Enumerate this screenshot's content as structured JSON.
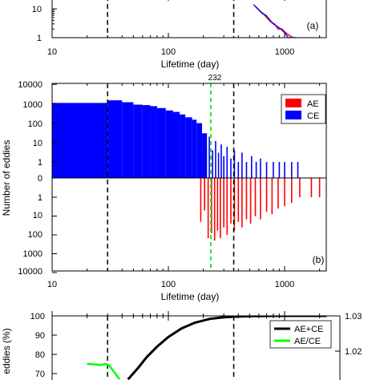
{
  "chart_data": [
    {
      "panel": "a",
      "type": "line",
      "panel_label": "(a)",
      "xlabel": "Lifetime (day)",
      "ylabel": "",
      "xscale": "log",
      "yscale": "log",
      "xlim": [
        10,
        2300
      ],
      "x_ticks": [
        "10",
        "100",
        "1000"
      ],
      "y_ticks": [
        "1",
        "10"
      ],
      "reference_lines_days": [
        30,
        365
      ],
      "series": [
        {
          "color": "#ff0000",
          "x": [
            560,
            600,
            650,
            700,
            760,
            820,
            880,
            950,
            1020,
            1100,
            1180,
            1260
          ],
          "y": [
            12,
            9,
            7,
            5,
            3.5,
            3,
            2,
            2,
            1.5,
            1.2,
            1,
            1
          ]
        },
        {
          "color": "#0000ff",
          "x": [
            540,
            590,
            640,
            690,
            750,
            800,
            860,
            930,
            1000,
            1080,
            1150,
            1250
          ],
          "y": [
            14,
            10,
            7,
            6,
            4,
            3,
            2.5,
            2,
            1.5,
            1,
            1,
            1
          ]
        }
      ]
    },
    {
      "panel": "b",
      "type": "bar",
      "panel_label": "(b)",
      "xlabel": "Lifetime (day)",
      "ylabel": "Number of eddies",
      "xscale": "log",
      "xlim": [
        10,
        2300
      ],
      "x_ticks": [
        "10",
        "100",
        "1000"
      ],
      "y_ticks_top": [
        "10000",
        "1000",
        "100",
        "10",
        "1",
        "0"
      ],
      "y_ticks_bottom": [
        "10",
        "100",
        "1000",
        "10000"
      ],
      "marker_label": "232",
      "marker_day": 232,
      "reference_lines_days": [
        30,
        365
      ],
      "legend": [
        {
          "name": "AE",
          "color": "#ff0000"
        },
        {
          "name": "CE",
          "color": "#0000ff"
        }
      ],
      "legend_position": "top-right",
      "ce_counts": [
        {
          "x0": 10,
          "x1": 30,
          "y": 1100
        },
        {
          "x0": 30,
          "x1": 40,
          "y": 1500
        },
        {
          "x0": 40,
          "x1": 50,
          "y": 1200
        },
        {
          "x0": 50,
          "x1": 60,
          "y": 900
        },
        {
          "x0": 60,
          "x1": 70,
          "y": 850
        },
        {
          "x0": 70,
          "x1": 80,
          "y": 750
        },
        {
          "x0": 80,
          "x1": 95,
          "y": 600
        },
        {
          "x0": 95,
          "x1": 110,
          "y": 450
        },
        {
          "x0": 110,
          "x1": 125,
          "y": 380
        },
        {
          "x0": 125,
          "x1": 140,
          "y": 280
        },
        {
          "x0": 140,
          "x1": 160,
          "y": 200
        },
        {
          "x0": 160,
          "x1": 175,
          "y": 150
        },
        {
          "x0": 175,
          "x1": 195,
          "y": 100
        },
        {
          "x0": 195,
          "x1": 215,
          "y": 30
        }
      ],
      "ce_lines": [
        {
          "x": 200,
          "y": 12
        },
        {
          "x": 212,
          "y": 6
        },
        {
          "x": 225,
          "y": 20
        },
        {
          "x": 240,
          "y": 4
        },
        {
          "x": 255,
          "y": 12
        },
        {
          "x": 270,
          "y": 3
        },
        {
          "x": 285,
          "y": 8
        },
        {
          "x": 300,
          "y": 2
        },
        {
          "x": 320,
          "y": 6
        },
        {
          "x": 345,
          "y": 1.5
        },
        {
          "x": 370,
          "y": 4
        },
        {
          "x": 400,
          "y": 1
        },
        {
          "x": 430,
          "y": 3
        },
        {
          "x": 470,
          "y": 1
        },
        {
          "x": 520,
          "y": 2
        },
        {
          "x": 570,
          "y": 1
        },
        {
          "x": 620,
          "y": 1.5
        },
        {
          "x": 700,
          "y": 1
        },
        {
          "x": 800,
          "y": 1
        },
        {
          "x": 900,
          "y": 1
        },
        {
          "x": 1000,
          "y": 1
        },
        {
          "x": 1150,
          "y": 1
        },
        {
          "x": 1300,
          "y": 1
        }
      ],
      "ae_lines": [
        {
          "x": 190,
          "y": 20
        },
        {
          "x": 205,
          "y": 5
        },
        {
          "x": 220,
          "y": 150
        },
        {
          "x": 235,
          "y": 80
        },
        {
          "x": 250,
          "y": 200
        },
        {
          "x": 265,
          "y": 60
        },
        {
          "x": 280,
          "y": 150
        },
        {
          "x": 300,
          "y": 40
        },
        {
          "x": 320,
          "y": 100
        },
        {
          "x": 345,
          "y": 25
        },
        {
          "x": 370,
          "y": 60
        },
        {
          "x": 400,
          "y": 20
        },
        {
          "x": 430,
          "y": 40
        },
        {
          "x": 470,
          "y": 15
        },
        {
          "x": 510,
          "y": 25
        },
        {
          "x": 560,
          "y": 10
        },
        {
          "x": 620,
          "y": 15
        },
        {
          "x": 700,
          "y": 6
        },
        {
          "x": 780,
          "y": 8
        },
        {
          "x": 880,
          "y": 4
        },
        {
          "x": 1000,
          "y": 3
        },
        {
          "x": 1150,
          "y": 2
        },
        {
          "x": 1350,
          "y": 1
        },
        {
          "x": 1700,
          "y": 1
        },
        {
          "x": 2000,
          "y": 1
        }
      ]
    },
    {
      "panel": "c",
      "type": "line",
      "ylabel": "eddies (%)",
      "xscale": "log",
      "xlim": [
        10,
        2300
      ],
      "y_ticks": [
        "100",
        "90",
        "80",
        "70"
      ],
      "y2_ticks": [
        "1.03",
        "1.02"
      ],
      "ylim": [
        67,
        100
      ],
      "y2lim": [
        1.0,
        1.03
      ],
      "reference_lines_days": [
        30,
        365
      ],
      "legend": [
        {
          "name": "AE+CE",
          "color": "#000000"
        },
        {
          "name": "AE/CE",
          "color": "#00ff00"
        }
      ],
      "legend_position": "top-right",
      "series": [
        {
          "name": "AE+CE",
          "color": "#000000",
          "x": [
            45,
            55,
            65,
            80,
            100,
            130,
            170,
            230,
            300,
            400,
            550,
            800,
            1200,
            2300
          ],
          "y": [
            67,
            73,
            78.5,
            84,
            89,
            93.5,
            96.5,
            98.5,
            99.3,
            99.7,
            99.9,
            100,
            100,
            100
          ]
        },
        {
          "name": "AE/CE",
          "color": "#00ff00",
          "x": [
            20,
            23,
            26,
            29,
            31,
            33,
            35,
            38
          ],
          "y": [
            75,
            74.8,
            74.5,
            75,
            74.2,
            72,
            70,
            67
          ]
        }
      ]
    }
  ]
}
